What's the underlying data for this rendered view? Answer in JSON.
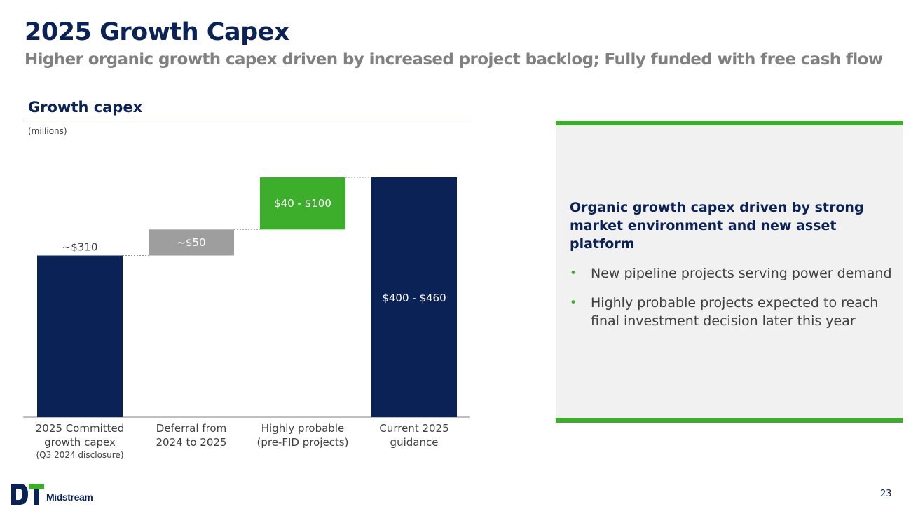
{
  "slide": {
    "title": "2025 Growth Capex",
    "subtitle": "Higher organic growth capex driven by increased project backlog; Fully funded with free cash flow",
    "page_number": "23"
  },
  "section": {
    "title": "Growth capex",
    "units": "(millions)"
  },
  "chart_data": {
    "type": "waterfall",
    "title": "Growth capex",
    "ylabel": "(millions)",
    "ylim": [
      0,
      460
    ],
    "categories": [
      [
        "2025 Committed",
        "growth capex"
      ],
      [
        "Deferral from",
        "2024 to 2025"
      ],
      [
        "Highly probable",
        "(pre-FID projects)"
      ],
      [
        "Current 2025",
        "guidance"
      ]
    ],
    "category_notes": [
      "(Q3 2024 disclosure)",
      "",
      "",
      ""
    ],
    "bars": [
      {
        "kind": "total",
        "start": 0,
        "end": 310,
        "label": "~$310",
        "color": "#0b2257",
        "label_position": "above"
      },
      {
        "kind": "increment",
        "start": 310,
        "end": 360,
        "label": "~$50",
        "color": "#9e9e9e",
        "label_position": "inside"
      },
      {
        "kind": "increment",
        "start": 360,
        "end": 460,
        "label": "$40 - $100",
        "color": "#3dae2b",
        "label_position": "inside"
      },
      {
        "kind": "total",
        "start": 0,
        "end": 460,
        "label": "$400 - $460",
        "color": "#0b2257",
        "label_position": "inside"
      }
    ]
  },
  "panel": {
    "heading": "Organic growth capex driven by strong market environment and new asset platform",
    "bullets": [
      "New pipeline projects serving power demand",
      "Highly probable projects expected to reach final investment decision later this year"
    ]
  },
  "logo": {
    "text": "Midstream",
    "mark": "DT"
  },
  "colors": {
    "navy": "#0b2257",
    "green": "#3dae2b",
    "gray": "#9e9e9e"
  }
}
